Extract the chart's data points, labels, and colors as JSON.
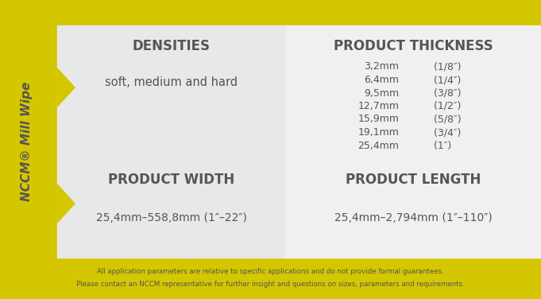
{
  "yellow_color": "#D4C700",
  "bg_light": "#E8E8E8",
  "bg_lighter": "#F0F0F0",
  "text_dark": "#555555",
  "side_label": "NCCM® Mill Wipe",
  "section1_header": "DENSITIES",
  "section1_body": "soft, medium and hard",
  "section2_header": "PRODUCT THICKNESS",
  "thickness_rows": [
    [
      "3,2mm",
      "  (1/8″)"
    ],
    [
      "6,4mm",
      "  (1/4″)"
    ],
    [
      "9,5mm",
      "  (3/8″)"
    ],
    [
      "12,7mm",
      "  (1/2″)"
    ],
    [
      "15,9mm",
      "  (5/8″)"
    ],
    [
      "19,1mm",
      "  (3/4″)"
    ],
    [
      "25,4mm",
      "  (1″)"
    ]
  ],
  "section3_header": "PRODUCT WIDTH",
  "section3_body": "25,4mm–558,8mm (1″–22″)",
  "section4_header": "PRODUCT LENGTH",
  "section4_body": "25,4mm–2,794mm (1″–110″)",
  "footer_line1": "All application parameters are relative to specific applications and do not provide formal guarantees.",
  "footer_line2": "Please contact an NCCM representative for further insight and questions on sizes, parameters and requirements."
}
